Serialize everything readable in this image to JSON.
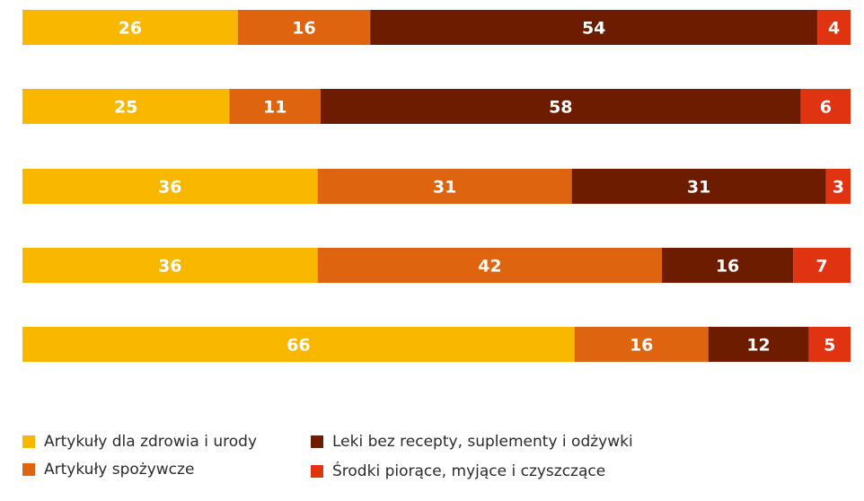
{
  "chart_data": {
    "type": "bar",
    "orientation": "horizontal",
    "stacked": true,
    "xlim": [
      0,
      100
    ],
    "grid": false,
    "legend_position": "bottom",
    "series": [
      {
        "name": "Artykuły dla zdrowia i urody",
        "color": "#F9B700",
        "values": [
          26,
          25,
          36,
          36,
          66
        ]
      },
      {
        "name": "Artykuły spożywcze",
        "color": "#DF6410",
        "values": [
          16,
          11,
          31,
          42,
          16
        ]
      },
      {
        "name": "Leki bez recepty, suplementy i odżywki",
        "color": "#6D1C00",
        "values": [
          54,
          58,
          31,
          16,
          12
        ]
      },
      {
        "name": "Środki piorące, myjące i czyszczące",
        "color": "#E03312",
        "values": [
          4,
          6,
          3,
          7,
          5
        ]
      }
    ]
  },
  "legend": {
    "items": [
      {
        "label": "Artykuły dla zdrowia i urody",
        "color": "#F9B700"
      },
      {
        "label": "Artykuły spożywcze",
        "color": "#DF6410"
      },
      {
        "label": "Leki bez recepty, suplementy i odżywki",
        "color": "#6D1C00"
      },
      {
        "label": "Środki piorące, myjące i czyszczące",
        "color": "#E03312"
      }
    ]
  }
}
